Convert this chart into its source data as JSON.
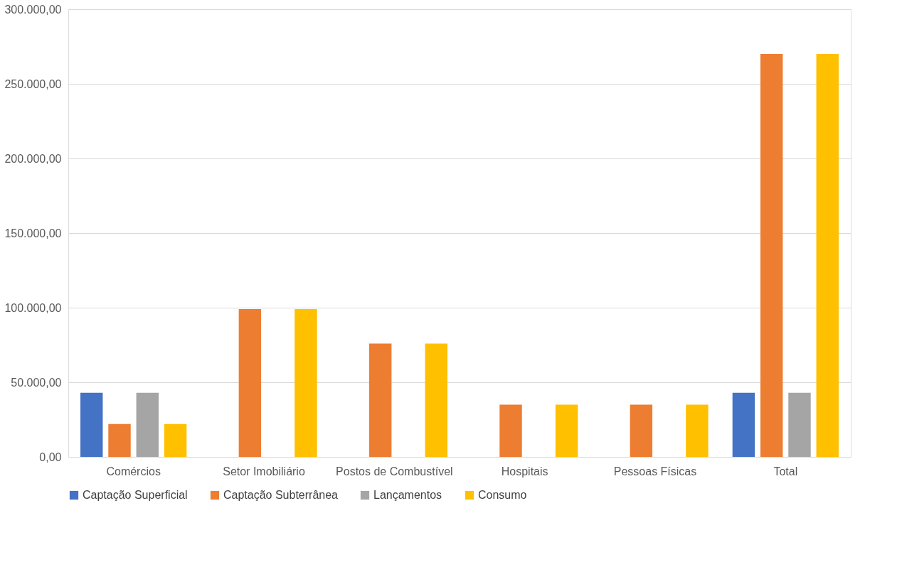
{
  "chart_data": {
    "type": "bar",
    "categories": [
      "Comércios",
      "Setor Imobiliário",
      "Postos de Combustível",
      "Hospitais",
      "Pessoas Físicas",
      "Total"
    ],
    "series": [
      {
        "name": "Captação Superficial",
        "color": "#4472c4",
        "values": [
          43000,
          0,
          0,
          0,
          0,
          43000
        ]
      },
      {
        "name": "Captação Subterrânea",
        "color": "#ed7d31",
        "values": [
          22000,
          99000,
          76000,
          35000,
          35000,
          270000
        ]
      },
      {
        "name": "Lançamentos",
        "color": "#a5a5a5",
        "values": [
          43000,
          0,
          0,
          0,
          0,
          43000
        ]
      },
      {
        "name": "Consumo",
        "color": "#ffc000",
        "values": [
          22000,
          99000,
          76000,
          35000,
          35000,
          270000
        ]
      }
    ],
    "ylim": [
      0,
      300000
    ],
    "yticks": [
      {
        "value": 0,
        "label": "0,00"
      },
      {
        "value": 50000,
        "label": "50.000,00"
      },
      {
        "value": 100000,
        "label": "100.000,00"
      },
      {
        "value": 150000,
        "label": "150.000,00"
      },
      {
        "value": 200000,
        "label": "200.000,00"
      },
      {
        "value": 250000,
        "label": "250.000,00"
      },
      {
        "value": 300000,
        "label": "300.000,00"
      }
    ],
    "grid": "y",
    "legend": "bottom"
  }
}
